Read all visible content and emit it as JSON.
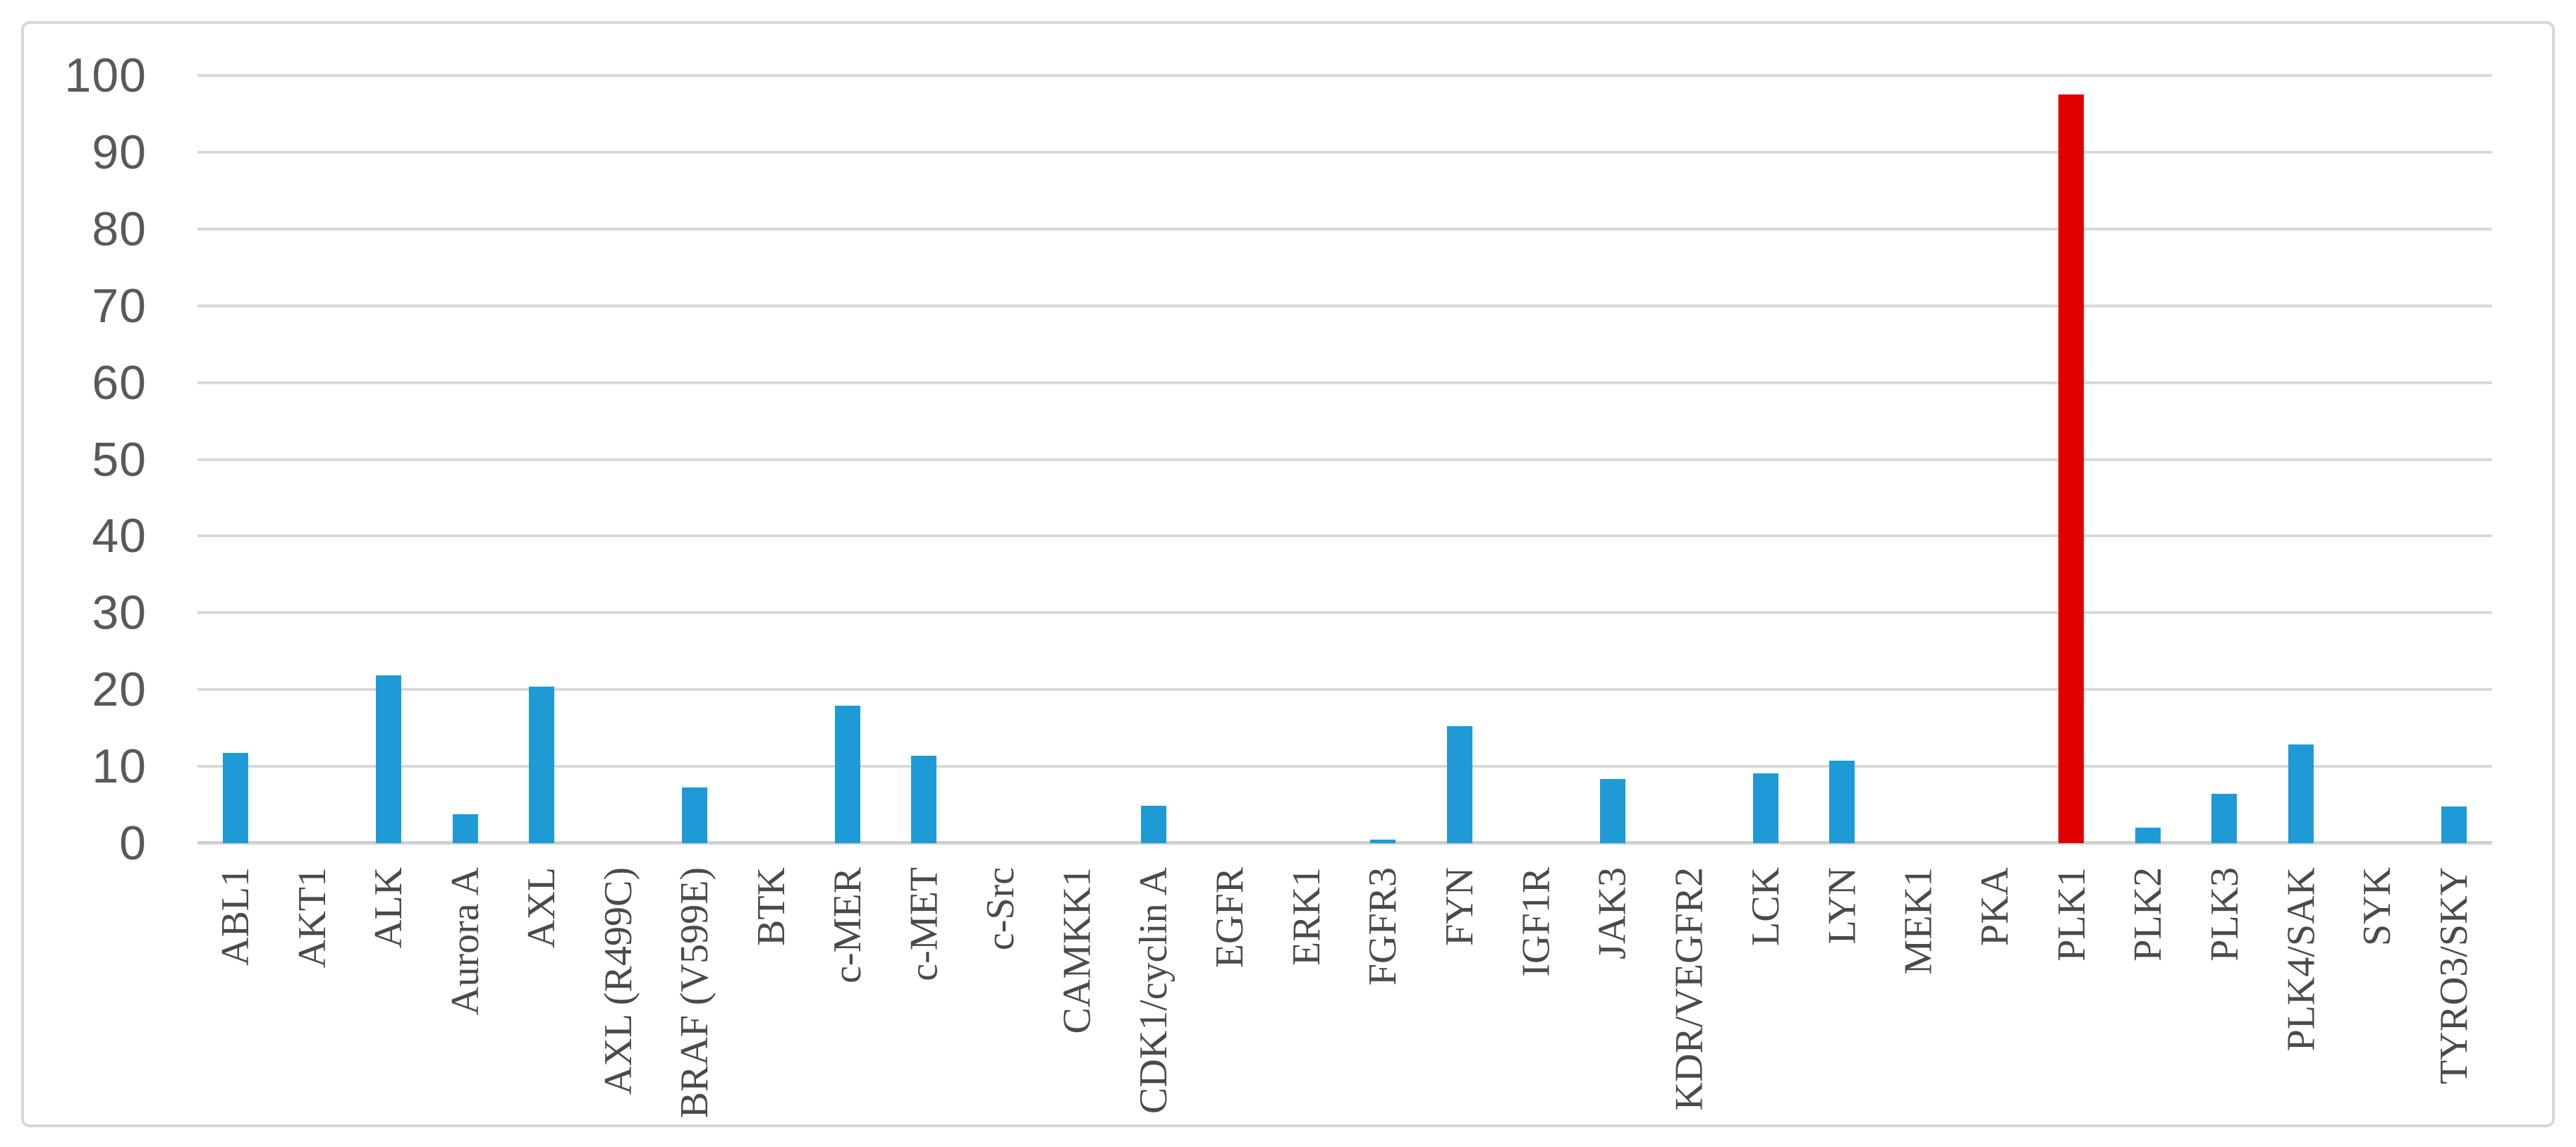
{
  "chart_data": {
    "type": "bar",
    "title": "",
    "xlabel": "",
    "ylabel": "",
    "categories": [
      "ABL1",
      "AKT1",
      "ALK",
      "Aurora A",
      "AXL",
      "AXL (R499C)",
      "BRAF (V599E)",
      "BTK",
      "c-MER",
      "c-MET",
      "c-Src",
      "CAMKK1",
      "CDK1/cyclin A",
      "EGFR",
      "ERK1",
      "FGFR3",
      "FYN",
      "IGF1R",
      "JAK3",
      "KDR/VEGFR2",
      "LCK",
      "LYN",
      "MEK1",
      "PKA",
      "PLK1",
      "PLK2",
      "PLK3",
      "PLK4/SAK",
      "SYK",
      "TYRO3/SKY"
    ],
    "values": [
      11.8,
      0,
      21.9,
      3.8,
      20.4,
      0,
      7.3,
      0,
      17.9,
      11.4,
      0,
      0,
      4.9,
      0,
      0,
      0.5,
      15.2,
      0,
      8.4,
      0,
      9.1,
      10.7,
      0,
      0,
      97.5,
      2.0,
      6.4,
      12.9,
      0,
      4.8
    ],
    "yticks": [
      0,
      10,
      20,
      30,
      40,
      50,
      60,
      70,
      80,
      90,
      100
    ],
    "ylim": [
      0,
      100
    ],
    "grid": "horizontal-only",
    "legend": "none",
    "highlight_category": "PLK1",
    "bar_color": "#1e9ad6",
    "highlight_color": "#e00000",
    "gridline_color": "#d9d9d9",
    "axis_line_color": "#d0d0d0",
    "ytick_text_color": "#595959",
    "xtick_text_color": "#4a4a4a",
    "frame_border_color": "#d7d7d7"
  }
}
